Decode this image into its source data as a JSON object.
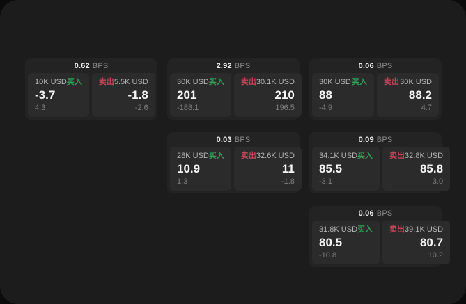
{
  "labels": {
    "bps_unit": "BPS",
    "buy": "买入",
    "sell": "卖出"
  },
  "colors": {
    "outer_background": "#0b0b0c",
    "surface": "#1c1c1d",
    "card": "#232324",
    "tile": "#2b2b2c",
    "buy_green": "#2f9e57",
    "sell_red": "#c44458",
    "price_white": "#f4f4f4",
    "label_gray": "#b3b3b3",
    "change_gray": "#7f7f7f"
  },
  "cards": [
    {
      "bps_value": "0.62",
      "buy": {
        "amount": "10K USD",
        "price": "-3.7",
        "change": "4.3"
      },
      "sell": {
        "amount": "5.5K USD",
        "price": "-1.8",
        "change": "-2.6"
      }
    },
    {
      "bps_value": "2.92",
      "buy": {
        "amount": "30K USD",
        "price": "201",
        "change": "-188.1"
      },
      "sell": {
        "amount": "30.1K USD",
        "price": "210",
        "change": "196.5"
      }
    },
    {
      "bps_value": "0.06",
      "buy": {
        "amount": "30K USD",
        "price": "88",
        "change": "-4.9"
      },
      "sell": {
        "amount": "30K USD",
        "price": "88.2",
        "change": "4.7"
      }
    },
    {
      "bps_value": "0.03",
      "buy": {
        "amount": "28K USD",
        "price": "10.9",
        "change": "1.3"
      },
      "sell": {
        "amount": "32.6K USD",
        "price": "11",
        "change": "-1.8"
      }
    },
    {
      "bps_value": "0.09",
      "buy": {
        "amount": "34.1K USD",
        "price": "85.5",
        "change": "-3.1"
      },
      "sell": {
        "amount": "32.8K USD",
        "price": "85.8",
        "change": "3.0"
      }
    },
    {
      "bps_value": "0.06",
      "buy": {
        "amount": "31.8K USD",
        "price": "80.5",
        "change": "-10.8"
      },
      "sell": {
        "amount": "39.1K USD",
        "price": "80.7",
        "change": "10.2"
      }
    }
  ]
}
